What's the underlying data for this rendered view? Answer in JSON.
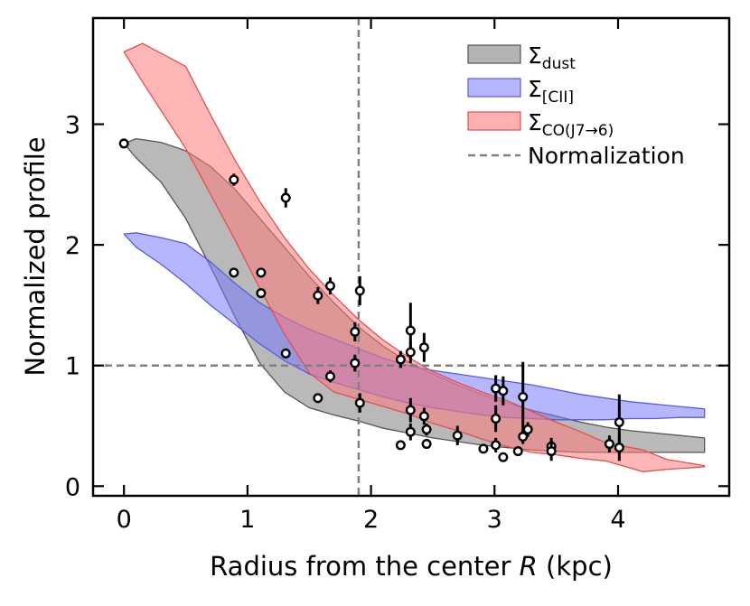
{
  "chart_data": {
    "type": "line",
    "title": "",
    "xlabel_prefix": "Radius from the center ",
    "xlabel_var": "R",
    "xlabel_suffix": " (kpc)",
    "ylabel": "Normalized profile",
    "xlim": [
      -0.25,
      4.9
    ],
    "ylim": [
      -0.08,
      3.88
    ],
    "xticks": [
      0,
      1,
      2,
      3,
      4
    ],
    "xtick_labels": [
      "0",
      "1",
      "2",
      "3",
      "4"
    ],
    "yticks": [
      0,
      1,
      2,
      3
    ],
    "ytick_labels": [
      "0",
      "1",
      "2",
      "3"
    ],
    "grid": false,
    "legend_position": "top-right",
    "normalization": {
      "x": 1.9,
      "y": 1.0,
      "label": "Normalization",
      "color": "#808080"
    },
    "bands": [
      {
        "name": "dust",
        "legend_main": "Σ",
        "legend_sub": "dust",
        "fill": "#808080",
        "edge": "#555555",
        "x": [
          0.0,
          0.1,
          0.3,
          0.5,
          0.7,
          0.9,
          1.1,
          1.3,
          1.5,
          1.7,
          1.9,
          2.1,
          2.3,
          2.5,
          2.7,
          2.9,
          3.1,
          3.3,
          3.5,
          3.7,
          3.9,
          4.1,
          4.3,
          4.5,
          4.7
        ],
        "upper": [
          2.84,
          2.88,
          2.85,
          2.78,
          2.65,
          2.46,
          2.22,
          1.98,
          1.74,
          1.52,
          1.32,
          1.16,
          1.03,
          0.93,
          0.84,
          0.76,
          0.69,
          0.63,
          0.58,
          0.53,
          0.49,
          0.46,
          0.44,
          0.42,
          0.4
        ],
        "lower": [
          2.84,
          2.72,
          2.52,
          2.22,
          1.82,
          1.4,
          1.02,
          0.78,
          0.65,
          0.59,
          0.54,
          0.48,
          0.44,
          0.4,
          0.37,
          0.34,
          0.32,
          0.3,
          0.29,
          0.28,
          0.28,
          0.28,
          0.28,
          0.28,
          0.28
        ]
      },
      {
        "name": "CII",
        "legend_main": "Σ",
        "legend_sub": "[CII]",
        "fill": "#7a7aff",
        "edge": "#5b5bd6",
        "x": [
          0.0,
          0.1,
          0.3,
          0.5,
          0.7,
          0.9,
          1.1,
          1.3,
          1.5,
          1.7,
          1.9,
          2.1,
          2.3,
          2.5,
          2.7,
          2.9,
          3.1,
          3.3,
          3.5,
          3.7,
          3.9,
          4.1,
          4.3,
          4.5,
          4.7
        ],
        "upper": [
          2.09,
          2.1,
          2.06,
          2.01,
          1.86,
          1.68,
          1.52,
          1.4,
          1.3,
          1.22,
          1.14,
          1.06,
          1.0,
          0.96,
          0.93,
          0.9,
          0.87,
          0.84,
          0.8,
          0.76,
          0.73,
          0.7,
          0.68,
          0.66,
          0.64
        ],
        "lower": [
          2.09,
          1.98,
          1.84,
          1.68,
          1.5,
          1.34,
          1.18,
          1.04,
          0.93,
          0.86,
          0.8,
          0.74,
          0.69,
          0.65,
          0.62,
          0.59,
          0.57,
          0.56,
          0.55,
          0.55,
          0.55,
          0.56,
          0.56,
          0.57,
          0.57
        ]
      },
      {
        "name": "CO",
        "legend_main": "Σ",
        "legend_sub": "CO(J7→6)",
        "fill": "#ff7a7a",
        "edge": "#e05050",
        "x": [
          0.0,
          0.15,
          0.5,
          0.7,
          0.9,
          1.1,
          1.3,
          1.5,
          1.7,
          1.9,
          2.1,
          2.3,
          2.5,
          2.7,
          2.9,
          3.1,
          3.3,
          3.5,
          3.7,
          3.9,
          4.2,
          4.4,
          4.7
        ],
        "upper": [
          3.6,
          3.67,
          3.48,
          3.08,
          2.7,
          2.36,
          2.06,
          1.8,
          1.58,
          1.38,
          1.21,
          1.07,
          0.95,
          0.86,
          0.78,
          0.71,
          0.62,
          0.53,
          0.45,
          0.36,
          0.3,
          0.22,
          0.17
        ],
        "lower": [
          3.6,
          3.35,
          2.8,
          2.42,
          2.04,
          1.64,
          1.26,
          0.94,
          0.78,
          0.72,
          0.66,
          0.6,
          0.52,
          0.46,
          0.39,
          0.33,
          0.28,
          0.26,
          0.23,
          0.21,
          0.12,
          0.14,
          0.16
        ]
      }
    ],
    "points": [
      {
        "x": 0.0,
        "y": 2.84,
        "err": 0.02
      },
      {
        "x": 0.89,
        "y": 2.54,
        "err": 0.05
      },
      {
        "x": 0.89,
        "y": 1.77,
        "err": 0.02
      },
      {
        "x": 1.11,
        "y": 1.77,
        "err": 0.04
      },
      {
        "x": 1.11,
        "y": 1.6,
        "err": 0.04
      },
      {
        "x": 1.31,
        "y": 2.39,
        "err": 0.08
      },
      {
        "x": 1.31,
        "y": 1.1,
        "err": 0.03
      },
      {
        "x": 1.57,
        "y": 1.58,
        "err": 0.07
      },
      {
        "x": 1.57,
        "y": 0.73,
        "err": 0.04
      },
      {
        "x": 1.67,
        "y": 1.66,
        "err": 0.07
      },
      {
        "x": 1.67,
        "y": 0.91,
        "err": 0.05
      },
      {
        "x": 1.87,
        "y": 1.28,
        "err": 0.08
      },
      {
        "x": 1.87,
        "y": 1.02,
        "err": 0.07
      },
      {
        "x": 1.91,
        "y": 1.62,
        "err": 0.12
      },
      {
        "x": 1.91,
        "y": 0.69,
        "err": 0.08
      },
      {
        "x": 2.24,
        "y": 1.05,
        "err": 0.07
      },
      {
        "x": 2.24,
        "y": 0.34,
        "err": 0.03
      },
      {
        "x": 2.32,
        "y": 1.29,
        "err": 0.23
      },
      {
        "x": 2.32,
        "y": 1.11,
        "err": 0.09
      },
      {
        "x": 2.32,
        "y": 0.63,
        "err": 0.1
      },
      {
        "x": 2.32,
        "y": 0.45,
        "err": 0.07
      },
      {
        "x": 2.43,
        "y": 1.15,
        "err": 0.12
      },
      {
        "x": 2.43,
        "y": 0.58,
        "err": 0.07
      },
      {
        "x": 2.45,
        "y": 0.47,
        "err": 0.05
      },
      {
        "x": 2.45,
        "y": 0.35,
        "err": 0.04
      },
      {
        "x": 2.7,
        "y": 0.42,
        "err": 0.08
      },
      {
        "x": 2.91,
        "y": 0.31,
        "err": 0.03
      },
      {
        "x": 3.01,
        "y": 0.81,
        "err": 0.11
      },
      {
        "x": 3.01,
        "y": 0.56,
        "err": 0.11
      },
      {
        "x": 3.01,
        "y": 0.34,
        "err": 0.06
      },
      {
        "x": 3.07,
        "y": 0.79,
        "err": 0.12
      },
      {
        "x": 3.07,
        "y": 0.24,
        "err": 0.03
      },
      {
        "x": 3.19,
        "y": 0.29,
        "err": 0.04
      },
      {
        "x": 3.23,
        "y": 0.74,
        "err": 0.29
      },
      {
        "x": 3.23,
        "y": 0.41,
        "err": 0.06
      },
      {
        "x": 3.27,
        "y": 0.47,
        "err": 0.06
      },
      {
        "x": 3.46,
        "y": 0.33,
        "err": 0.07
      },
      {
        "x": 3.46,
        "y": 0.29,
        "err": 0.08
      },
      {
        "x": 3.93,
        "y": 0.35,
        "err": 0.07
      },
      {
        "x": 4.01,
        "y": 0.53,
        "err": 0.23
      },
      {
        "x": 4.01,
        "y": 0.32,
        "err": 0.11
      }
    ]
  }
}
